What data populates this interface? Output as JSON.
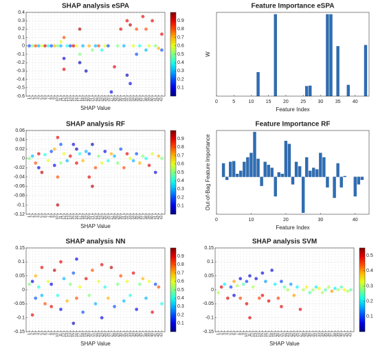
{
  "chart_data": [
    {
      "type": "scatter",
      "title": "SHAP analysis eSPA",
      "xlabel": "SHAP Value",
      "grid": true,
      "colormap": "jet",
      "xlim": [
        0,
        44
      ],
      "xticks": [
        1,
        2,
        3,
        4,
        5,
        6,
        7,
        8,
        9,
        10,
        11,
        12,
        13,
        14,
        15,
        16,
        17,
        18,
        19,
        20,
        21,
        22,
        23,
        24,
        25,
        26,
        27,
        28,
        29,
        30,
        31,
        32,
        33,
        34,
        35,
        36,
        37,
        38,
        39,
        40,
        41,
        42,
        43
      ],
      "ylim": [
        -0.6,
        0.4
      ],
      "yticks": [
        -0.6,
        -0.5,
        -0.4,
        -0.3,
        -0.2,
        -0.1,
        0,
        0.1,
        0.2,
        0.3,
        0.4
      ],
      "clim": [
        0,
        1
      ],
      "cticks": [
        0.1,
        0.2,
        0.3,
        0.4,
        0.5,
        0.6,
        0.7,
        0.8,
        0.9
      ],
      "points": [
        [
          1,
          0,
          0.2
        ],
        [
          2,
          0,
          0.5
        ],
        [
          3,
          0,
          0.8
        ],
        [
          4,
          0,
          0.3
        ],
        [
          5,
          0,
          0.6
        ],
        [
          6,
          0,
          0.9
        ],
        [
          7,
          0,
          0.4
        ],
        [
          8,
          0,
          0.2
        ],
        [
          9,
          0,
          0.7
        ],
        [
          10,
          0,
          0.5
        ],
        [
          11,
          0,
          0.3
        ],
        [
          11,
          0.05,
          0.6
        ],
        [
          12,
          -0.15,
          0.1
        ],
        [
          12,
          -0.28,
          0.9
        ],
        [
          12,
          0.1,
          0.8
        ],
        [
          13,
          0,
          0.4
        ],
        [
          14,
          0,
          0.2
        ],
        [
          15,
          0,
          0.9
        ],
        [
          16,
          0,
          0.6
        ],
        [
          17,
          0.2,
          0.95
        ],
        [
          17,
          -0.2,
          0.05
        ],
        [
          17,
          -0.1,
          0.5
        ],
        [
          18,
          0,
          0.3
        ],
        [
          19,
          -0.3,
          0.05
        ],
        [
          20,
          0,
          0.7
        ],
        [
          21,
          -0.05,
          0.5
        ],
        [
          22,
          0,
          0.3
        ],
        [
          23,
          0,
          0.8
        ],
        [
          24,
          -0.05,
          0.4
        ],
        [
          25,
          0,
          0.6
        ],
        [
          26,
          0,
          0.2
        ],
        [
          27,
          -0.55,
          0.1
        ],
        [
          28,
          -0.25,
          0.9
        ],
        [
          29,
          0,
          0.5
        ],
        [
          30,
          0.2,
          0.9
        ],
        [
          31,
          0,
          0.3
        ],
        [
          32,
          -0.35,
          0.05
        ],
        [
          32,
          0.3,
          0.9
        ],
        [
          33,
          0.25,
          0.95
        ],
        [
          33,
          -0.45,
          0.1
        ],
        [
          34,
          0,
          0.6
        ],
        [
          35,
          0.2,
          0.8
        ],
        [
          35,
          -0.1,
          0.2
        ],
        [
          36,
          0,
          0.4
        ],
        [
          37,
          0.35,
          0.9
        ],
        [
          38,
          0.2,
          0.8
        ],
        [
          38,
          -0.05,
          0.3
        ],
        [
          39,
          0,
          0.6
        ],
        [
          40,
          0.3,
          0.9
        ],
        [
          41,
          0,
          0.5
        ],
        [
          42,
          -0.03,
          0.7
        ],
        [
          43,
          0.14,
          0.9
        ],
        [
          43,
          -0.05,
          0.2
        ]
      ]
    },
    {
      "type": "bar",
      "title": "Feature Importance eSPA",
      "xlabel": "Feature Index",
      "ylabel": "W",
      "color": "#2e6db4",
      "xlim": [
        0,
        44
      ],
      "xticks": [
        0,
        5,
        10,
        15,
        20,
        25,
        30,
        35,
        40
      ],
      "ylim": [
        0,
        0.21
      ],
      "x": [
        12,
        17,
        26,
        27,
        32,
        33,
        35,
        38,
        43
      ],
      "values": [
        0.06,
        0.205,
        0.025,
        0.026,
        0.205,
        0.205,
        0.125,
        0.028,
        0.128
      ]
    },
    {
      "type": "scatter",
      "title": "SHAP analysis RF",
      "xlabel": "SHAP Value",
      "grid": true,
      "colormap": "jet",
      "xlim": [
        0,
        44
      ],
      "xticks": [
        1,
        2,
        3,
        4,
        5,
        6,
        7,
        8,
        9,
        10,
        11,
        12,
        13,
        14,
        15,
        16,
        17,
        18,
        19,
        20,
        21,
        22,
        23,
        24,
        25,
        26,
        27,
        28,
        29,
        30,
        31,
        32,
        33,
        34,
        35,
        36,
        37,
        38,
        39,
        40,
        41,
        42,
        43
      ],
      "ylim": [
        -0.12,
        0.06
      ],
      "yticks": [
        -0.12,
        -0.1,
        -0.08,
        -0.06,
        -0.04,
        -0.02,
        0,
        0.02,
        0.04,
        0.06
      ],
      "clim": [
        0,
        1
      ],
      "cticks": [
        0.1,
        0.2,
        0.3,
        0.4,
        0.5,
        0.6,
        0.7,
        0.8,
        0.9
      ],
      "points": [
        [
          1,
          0,
          0.5
        ],
        [
          2,
          0.005,
          0.3
        ],
        [
          3,
          -0.01,
          0.8
        ],
        [
          4,
          -0.02,
          0.1
        ],
        [
          4,
          0.01,
          0.9
        ],
        [
          5,
          -0.03,
          0.95
        ],
        [
          6,
          0.008,
          0.4
        ],
        [
          7,
          -0.005,
          0.6
        ],
        [
          8,
          0.015,
          0.2
        ],
        [
          9,
          0.02,
          0.7
        ],
        [
          9,
          -0.015,
          0.1
        ],
        [
          10,
          0.045,
          0.9
        ],
        [
          10,
          -0.1,
          0.95
        ],
        [
          10,
          -0.04,
          0.8
        ],
        [
          11,
          0.03,
          0.2
        ],
        [
          11,
          -0.01,
          0.5
        ],
        [
          12,
          0.01,
          0.6
        ],
        [
          13,
          -0.005,
          0.3
        ],
        [
          14,
          0.005,
          0.9
        ],
        [
          15,
          0.03,
          0.1
        ],
        [
          16,
          0.02,
          0.05
        ],
        [
          16,
          -0.01,
          0.9
        ],
        [
          17,
          0.01,
          0.4
        ],
        [
          18,
          -0.005,
          0.7
        ],
        [
          19,
          0.015,
          0.3
        ],
        [
          20,
          -0.04,
          0.9
        ],
        [
          20,
          0.01,
          0.2
        ],
        [
          21,
          0.03,
          0.05
        ],
        [
          21,
          -0.06,
          0.95
        ],
        [
          22,
          -0.02,
          0.8
        ],
        [
          23,
          0.005,
          0.5
        ],
        [
          24,
          -0.01,
          0.6
        ],
        [
          25,
          0.015,
          0.1
        ],
        [
          26,
          -0.005,
          0.4
        ],
        [
          27,
          0.01,
          0.7
        ],
        [
          28,
          0.005,
          0.3
        ],
        [
          29,
          -0.01,
          0.5
        ],
        [
          30,
          0.02,
          0.2
        ],
        [
          31,
          -0.02,
          0.8
        ],
        [
          32,
          0.01,
          0.9
        ],
        [
          33,
          0,
          0.6
        ],
        [
          34,
          -0.005,
          0.3
        ],
        [
          35,
          0.01,
          0.2
        ],
        [
          36,
          -0.01,
          0.7
        ],
        [
          37,
          0.005,
          0.5
        ],
        [
          38,
          0,
          0.4
        ],
        [
          39,
          -0.015,
          0.9
        ],
        [
          40,
          0.01,
          0.6
        ],
        [
          41,
          -0.03,
          0.1
        ],
        [
          42,
          0.005,
          0.7
        ],
        [
          43,
          0,
          0.5
        ]
      ]
    },
    {
      "type": "bar",
      "title": "Feature Importance RF",
      "xlabel": "Feature Index",
      "ylabel": "Out-of-Bag Feature Importance",
      "color": "#2e6db4",
      "xlim": [
        0,
        44
      ],
      "xticks": [
        0,
        10,
        20,
        30,
        40
      ],
      "ylim": [
        -0.25,
        0.31
      ],
      "x": [
        1,
        2,
        3,
        4,
        5,
        6,
        7,
        8,
        9,
        10,
        11,
        12,
        13,
        14,
        15,
        16,
        17,
        18,
        19,
        20,
        21,
        22,
        23,
        24,
        25,
        26,
        27,
        28,
        29,
        30,
        31,
        32,
        33,
        34,
        35,
        36,
        37,
        38,
        39,
        40,
        41,
        42,
        43
      ],
      "values": [
        0,
        0.09,
        -0.02,
        0.1,
        0.105,
        0.02,
        0.04,
        0.1,
        0.13,
        0.16,
        0.3,
        0.12,
        -0.06,
        0.1,
        0.08,
        0.06,
        -0.13,
        0.03,
        0.02,
        0.24,
        0.22,
        -0.05,
        0.1,
        0.07,
        -0.24,
        0.13,
        0.04,
        0.06,
        0.05,
        0.16,
        0.13,
        -0.07,
        0,
        -0.14,
        0.09,
        -0.07,
        0.005,
        0,
        0,
        -0.13,
        -0.05,
        -0.02,
        0
      ]
    },
    {
      "type": "scatter",
      "title": "SHAP analysis NN",
      "xlabel": "SHAP Value",
      "grid": true,
      "colormap": "jet",
      "xlim": [
        0,
        44
      ],
      "xticks": [
        1,
        2,
        3,
        4,
        5,
        6,
        7,
        8,
        9,
        10,
        11,
        12,
        13,
        14,
        15,
        16,
        17,
        18,
        19,
        20,
        21,
        22,
        23,
        24,
        25,
        26,
        27,
        28,
        29,
        30,
        31,
        32,
        33,
        34,
        35,
        36,
        37,
        38,
        39,
        40,
        41,
        42,
        43
      ],
      "ylim": [
        -0.15,
        0.15
      ],
      "yticks": [
        -0.15,
        -0.1,
        -0.05,
        0,
        0.05,
        0.1,
        0.15
      ],
      "clim": [
        0,
        1
      ],
      "cticks": [
        0.1,
        0.2,
        0.3,
        0.4,
        0.5,
        0.6,
        0.7,
        0.8,
        0.9
      ],
      "points": [
        [
          1,
          0.02,
          0.5
        ],
        [
          2,
          -0.09,
          0.9
        ],
        [
          2,
          0.03,
          0.1
        ],
        [
          3,
          0.05,
          0.7
        ],
        [
          3,
          -0.03,
          0.2
        ],
        [
          4,
          0.01,
          0.4
        ],
        [
          5,
          0.08,
          0.9
        ],
        [
          5,
          -0.02,
          0.3
        ],
        [
          6,
          -0.05,
          0.8
        ],
        [
          7,
          0.03,
          0.6
        ],
        [
          8,
          0.02,
          0.1
        ],
        [
          8,
          -0.06,
          0.9
        ],
        [
          9,
          0.07,
          0.95
        ],
        [
          10,
          -0.02,
          0.4
        ],
        [
          11,
          0.1,
          0.9
        ],
        [
          11,
          -0.07,
          0.1
        ],
        [
          12,
          0.04,
          0.3
        ],
        [
          13,
          -0.04,
          0.7
        ],
        [
          14,
          0.02,
          0.5
        ],
        [
          15,
          -0.12,
          0.05
        ],
        [
          15,
          0.06,
          0.2
        ],
        [
          16,
          0.11,
          0.1
        ],
        [
          16,
          -0.03,
          0.8
        ],
        [
          17,
          0.01,
          0.6
        ],
        [
          18,
          -0.08,
          0.2
        ],
        [
          19,
          0.04,
          0.9
        ],
        [
          20,
          -0.02,
          0.5
        ],
        [
          21,
          0.07,
          0.8
        ],
        [
          22,
          -0.05,
          0.3
        ],
        [
          23,
          0.03,
          0.6
        ],
        [
          24,
          0.09,
          0.9
        ],
        [
          24,
          -0.1,
          0.1
        ],
        [
          25,
          0.01,
          0.4
        ],
        [
          26,
          -0.03,
          0.7
        ],
        [
          27,
          0.08,
          0.95
        ],
        [
          28,
          -0.06,
          0.2
        ],
        [
          29,
          0.02,
          0.5
        ],
        [
          30,
          0.05,
          0.8
        ],
        [
          31,
          -0.04,
          0.3
        ],
        [
          32,
          0.03,
          0.6
        ],
        [
          33,
          -0.02,
          0.4
        ],
        [
          34,
          0.06,
          0.9
        ],
        [
          35,
          -0.07,
          0.1
        ],
        [
          36,
          0.02,
          0.5
        ],
        [
          37,
          0.04,
          0.7
        ],
        [
          38,
          -0.03,
          0.3
        ],
        [
          39,
          0.03,
          0.6
        ],
        [
          40,
          -0.08,
          0.9
        ],
        [
          41,
          0.02,
          0.2
        ],
        [
          42,
          0.01,
          0.8
        ],
        [
          43,
          -0.05,
          0.4
        ]
      ]
    },
    {
      "type": "scatter",
      "title": "SHAP analysis SVM",
      "xlabel": "SHAP Value",
      "grid": true,
      "colormap": "jet",
      "xlim": [
        0,
        44
      ],
      "xticks": [
        1,
        2,
        3,
        4,
        5,
        6,
        7,
        8,
        9,
        10,
        11,
        12,
        13,
        14,
        15,
        16,
        17,
        18,
        19,
        20,
        21,
        22,
        23,
        24,
        25,
        26,
        27,
        28,
        29,
        30,
        31,
        32,
        33,
        34,
        35,
        36,
        37,
        38,
        39,
        40,
        41,
        42,
        43
      ],
      "ylim": [
        -0.15,
        0.15
      ],
      "yticks": [
        -0.15,
        -0.1,
        -0.05,
        0,
        0.05,
        0.1,
        0.15
      ],
      "clim": [
        0,
        0.55
      ],
      "cticks": [
        0.1,
        0.2,
        0.3,
        0.4,
        0.5
      ],
      "points": [
        [
          1,
          -0.01,
          0.3
        ],
        [
          2,
          0.01,
          0.5
        ],
        [
          3,
          0.02,
          0.2
        ],
        [
          4,
          -0.03,
          0.5
        ],
        [
          5,
          0.01,
          0.1
        ],
        [
          6,
          0.03,
          0.4
        ],
        [
          6,
          -0.02,
          0.05
        ],
        [
          7,
          0.015,
          0.3
        ],
        [
          8,
          0.04,
          0.05
        ],
        [
          8,
          -0.03,
          0.45
        ],
        [
          9,
          0.02,
          0.25
        ],
        [
          10,
          -0.05,
          0.5
        ],
        [
          10,
          0.03,
          0.1
        ],
        [
          11,
          -0.1,
          0.5
        ],
        [
          11,
          0.05,
          0.05
        ],
        [
          12,
          0.01,
          0.3
        ],
        [
          13,
          0.04,
          0.05
        ],
        [
          14,
          -0.03,
          0.45
        ],
        [
          15,
          0.06,
          0.05
        ],
        [
          15,
          -0.02,
          0.5
        ],
        [
          16,
          0.03,
          0.15
        ],
        [
          17,
          -0.04,
          0.5
        ],
        [
          18,
          0.07,
          0.05
        ],
        [
          19,
          0.02,
          0.2
        ],
        [
          20,
          -0.03,
          0.45
        ],
        [
          21,
          -0.06,
          0.5
        ],
        [
          21,
          0.03,
          0.1
        ],
        [
          22,
          0.01,
          0.25
        ],
        [
          23,
          0,
          0.3
        ],
        [
          24,
          0.02,
          0.15
        ],
        [
          25,
          -0.02,
          0.4
        ],
        [
          26,
          0.01,
          0.2
        ],
        [
          27,
          -0.07,
          0.5
        ],
        [
          28,
          0,
          0.3
        ],
        [
          29,
          0.01,
          0.35
        ],
        [
          30,
          -0.01,
          0.25
        ],
        [
          31,
          0,
          0.3
        ],
        [
          32,
          0.01,
          0.2
        ],
        [
          33,
          0.005,
          0.35
        ],
        [
          34,
          -0.01,
          0.3
        ],
        [
          35,
          0,
          0.25
        ],
        [
          36,
          0.01,
          0.3
        ],
        [
          37,
          -0.005,
          0.4
        ],
        [
          38,
          0.005,
          0.2
        ],
        [
          39,
          0,
          0.3
        ],
        [
          40,
          0.01,
          0.25
        ],
        [
          41,
          0,
          0.35
        ],
        [
          42,
          -0.005,
          0.3
        ],
        [
          43,
          0,
          0.25
        ]
      ]
    }
  ]
}
